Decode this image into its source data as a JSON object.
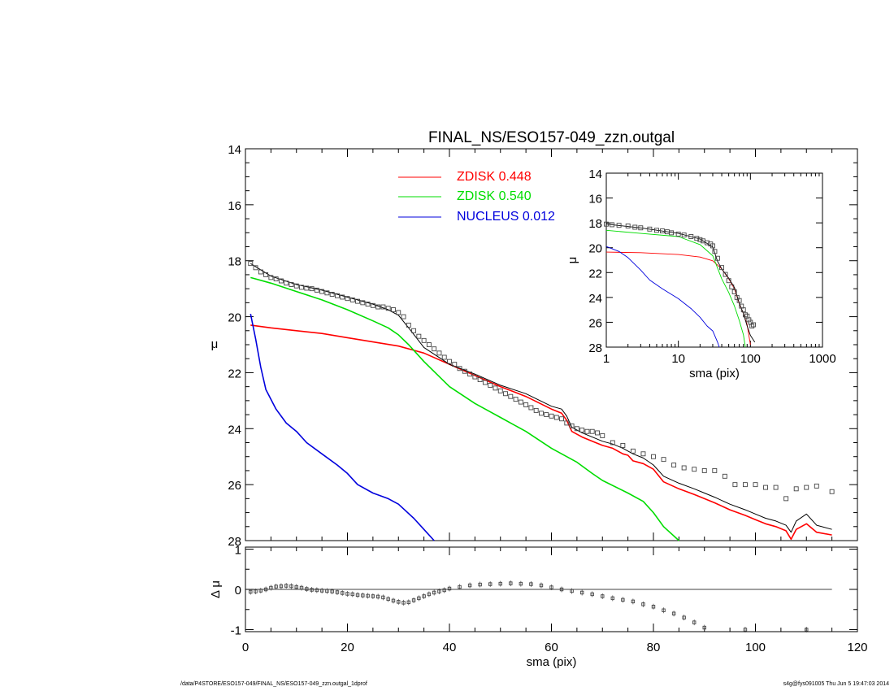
{
  "chart_data": [
    {
      "id": "main",
      "type": "line",
      "title": "FINAL_NS/ESO157-049_zzn.outgal",
      "xlabel": "",
      "ylabel": "μ",
      "xlim": [
        0,
        120
      ],
      "ylim": [
        28,
        14
      ],
      "yticks": [
        "14",
        "16",
        "18",
        "20",
        "22",
        "24",
        "26",
        "28"
      ],
      "series": [
        {
          "name": "ZDISK  0.448",
          "color": "#ff0000",
          "x": [
            1,
            5,
            10,
            15,
            20,
            25,
            30,
            35,
            40,
            45,
            50,
            55,
            60,
            62,
            63,
            64,
            66,
            68,
            70,
            72,
            74,
            75,
            76,
            78,
            80,
            82,
            85,
            88,
            90,
            92,
            95,
            98,
            100,
            102,
            104,
            106,
            107,
            108,
            110,
            112,
            115
          ],
          "y": [
            20.3,
            20.4,
            20.5,
            20.6,
            20.75,
            20.9,
            21.05,
            21.3,
            21.7,
            22.1,
            22.5,
            22.85,
            23.3,
            23.45,
            23.7,
            24.1,
            24.3,
            24.45,
            24.6,
            24.7,
            24.9,
            24.95,
            25.15,
            25.25,
            25.45,
            25.9,
            26.15,
            26.35,
            26.5,
            26.65,
            26.9,
            27.1,
            27.25,
            27.4,
            27.5,
            27.65,
            27.95,
            27.6,
            27.4,
            27.7,
            27.8
          ]
        },
        {
          "name": "ZDISK  0.540",
          "color": "#00dd00",
          "x": [
            1,
            5,
            10,
            15,
            20,
            25,
            28,
            30,
            32,
            35,
            40,
            45,
            50,
            55,
            60,
            63,
            65,
            68,
            70,
            75,
            78,
            80,
            82,
            85
          ],
          "y": [
            18.6,
            18.8,
            19.1,
            19.4,
            19.75,
            20.15,
            20.4,
            20.65,
            21.0,
            21.6,
            22.5,
            23.1,
            23.6,
            24.1,
            24.7,
            25.0,
            25.2,
            25.6,
            25.85,
            26.3,
            26.6,
            27.0,
            27.5,
            28.0
          ]
        },
        {
          "name": "NUCLEUS  0.012",
          "color": "#0000dd",
          "x": [
            1,
            2,
            3,
            4,
            6,
            8,
            10,
            12,
            15,
            18,
            20,
            22,
            25,
            28,
            30,
            33,
            35,
            37
          ],
          "y": [
            19.9,
            20.8,
            21.8,
            22.6,
            23.3,
            23.8,
            24.1,
            24.5,
            24.9,
            25.3,
            25.6,
            26.0,
            26.3,
            26.5,
            26.7,
            27.2,
            27.6,
            28.0
          ]
        },
        {
          "name": "",
          "color": "#000000",
          "x": [
            1,
            5,
            10,
            15,
            20,
            25,
            28,
            30,
            32,
            35,
            40,
            45,
            50,
            55,
            60,
            62,
            63,
            64,
            66,
            68,
            70,
            72,
            74,
            76,
            78,
            80,
            82,
            85,
            88,
            90,
            92,
            95,
            98,
            100,
            102,
            104,
            106,
            107,
            108,
            110,
            112,
            115
          ],
          "y": [
            18.1,
            18.55,
            18.85,
            19.05,
            19.3,
            19.55,
            19.75,
            19.95,
            20.4,
            21.1,
            21.7,
            22.05,
            22.45,
            22.75,
            23.2,
            23.3,
            23.55,
            23.95,
            24.15,
            24.3,
            24.45,
            24.55,
            24.7,
            24.9,
            25.05,
            25.3,
            25.7,
            25.95,
            26.15,
            26.3,
            26.45,
            26.7,
            26.9,
            27.05,
            27.2,
            27.3,
            27.45,
            27.7,
            27.3,
            27.05,
            27.45,
            27.6
          ]
        }
      ],
      "points": {
        "x": [
          1,
          2,
          3,
          4,
          5,
          6,
          7,
          8,
          9,
          10,
          11,
          12,
          13,
          14,
          15,
          16,
          17,
          18,
          19,
          20,
          21,
          22,
          23,
          24,
          25,
          26,
          27,
          28,
          29,
          30,
          31,
          32,
          33,
          34,
          35,
          36,
          37,
          38,
          39,
          40,
          41,
          42,
          43,
          44,
          45,
          46,
          47,
          48,
          49,
          50,
          51,
          52,
          53,
          54,
          55,
          56,
          57,
          58,
          59,
          60,
          61,
          62,
          63,
          64,
          65,
          66,
          67,
          68,
          69,
          70,
          72,
          74,
          76,
          78,
          80,
          82,
          84,
          86,
          88,
          90,
          92,
          94,
          96,
          98,
          100,
          102,
          104,
          106,
          108,
          110,
          112,
          115
        ],
        "y": [
          18.1,
          18.25,
          18.4,
          18.5,
          18.6,
          18.65,
          18.72,
          18.8,
          18.85,
          18.9,
          18.95,
          18.98,
          19.0,
          19.05,
          19.1,
          19.15,
          19.2,
          19.25,
          19.3,
          19.35,
          19.4,
          19.45,
          19.5,
          19.55,
          19.6,
          19.65,
          19.65,
          19.7,
          19.75,
          19.85,
          20.0,
          20.3,
          20.5,
          20.7,
          20.85,
          21.0,
          21.15,
          21.3,
          21.45,
          21.6,
          21.7,
          21.85,
          21.95,
          22.05,
          22.15,
          22.25,
          22.35,
          22.45,
          22.55,
          22.65,
          22.75,
          22.85,
          22.95,
          23.05,
          23.15,
          23.25,
          23.35,
          23.45,
          23.5,
          23.55,
          23.6,
          23.65,
          23.8,
          23.9,
          24.0,
          24.05,
          24.1,
          24.1,
          24.15,
          24.25,
          24.5,
          24.6,
          24.8,
          24.9,
          25.0,
          25.1,
          25.3,
          25.4,
          25.45,
          25.5,
          25.5,
          25.7,
          26.0,
          26.0,
          26.0,
          26.1,
          26.1,
          26.5,
          26.15,
          26.1,
          26.05,
          26.25
        ]
      },
      "legend_position": "top-center",
      "grid": false
    },
    {
      "id": "residual",
      "type": "scatter",
      "xlabel": "sma (pix)",
      "ylabel": "Δ μ",
      "xlim": [
        0,
        120
      ],
      "ylim": [
        -1,
        1
      ],
      "xticks": [
        "0",
        "20",
        "40",
        "60",
        "80",
        "100",
        "120"
      ],
      "yticks": [
        "1",
        "0",
        "-1"
      ],
      "zero_line": {
        "x": [
          1,
          115
        ],
        "y": 0
      },
      "points": {
        "x": [
          1,
          2,
          3,
          4,
          5,
          6,
          7,
          8,
          9,
          10,
          11,
          12,
          13,
          14,
          15,
          16,
          17,
          18,
          19,
          20,
          21,
          22,
          23,
          24,
          25,
          26,
          27,
          28,
          29,
          30,
          31,
          32,
          33,
          34,
          35,
          36,
          37,
          38,
          39,
          40,
          42,
          44,
          46,
          48,
          50,
          52,
          54,
          56,
          58,
          60,
          62,
          64,
          66,
          68,
          70,
          72,
          74,
          76,
          78,
          80,
          82,
          84,
          86,
          88,
          90,
          98,
          110
        ],
        "y": [
          -0.06,
          -0.05,
          -0.03,
          0.0,
          0.04,
          0.07,
          0.08,
          0.09,
          0.08,
          0.06,
          0.04,
          0.01,
          -0.01,
          -0.02,
          -0.03,
          -0.04,
          -0.05,
          -0.07,
          -0.09,
          -0.11,
          -0.12,
          -0.14,
          -0.15,
          -0.16,
          -0.17,
          -0.18,
          -0.2,
          -0.24,
          -0.28,
          -0.31,
          -0.33,
          -0.32,
          -0.27,
          -0.22,
          -0.17,
          -0.12,
          -0.08,
          -0.05,
          -0.02,
          0.02,
          0.06,
          0.1,
          0.12,
          0.13,
          0.14,
          0.15,
          0.14,
          0.13,
          0.1,
          0.05,
          0.0,
          -0.04,
          -0.08,
          -0.12,
          -0.17,
          -0.22,
          -0.26,
          -0.3,
          -0.37,
          -0.43,
          -0.52,
          -0.6,
          -0.7,
          -0.82,
          -0.95,
          -1.0,
          -1.0
        ]
      }
    },
    {
      "id": "inset",
      "type": "line",
      "xlabel": "sma (pix)",
      "ylabel": "μ",
      "xscale": "log",
      "xlim": [
        1,
        1000
      ],
      "ylim": [
        28,
        14
      ],
      "xticks": [
        "1",
        "10",
        "100",
        "1000"
      ],
      "yticks": [
        "14",
        "16",
        "18",
        "20",
        "22",
        "24",
        "26",
        "28"
      ],
      "series": [
        {
          "name": "",
          "color": "#ff0000",
          "x": [
            1,
            3,
            10,
            20,
            30,
            40,
            50,
            60,
            70,
            80,
            90,
            100
          ],
          "y": [
            20.35,
            20.4,
            20.55,
            20.75,
            21.05,
            21.7,
            22.5,
            23.3,
            24.5,
            25.3,
            26.2,
            27.8
          ]
        },
        {
          "name": "",
          "color": "#00dd00",
          "x": [
            1,
            3,
            10,
            20,
            30,
            40,
            50,
            60,
            70,
            80,
            85
          ],
          "y": [
            18.6,
            18.85,
            19.1,
            19.75,
            20.65,
            22.5,
            23.6,
            24.7,
            25.85,
            27.0,
            28.0
          ]
        },
        {
          "name": "",
          "color": "#0000dd",
          "x": [
            1,
            1.5,
            2,
            3,
            4,
            6,
            10,
            15,
            20,
            25,
            30,
            35,
            37
          ],
          "y": [
            19.9,
            20.3,
            20.8,
            21.8,
            22.6,
            23.3,
            24.1,
            24.9,
            25.6,
            26.3,
            26.7,
            27.6,
            28.0
          ]
        },
        {
          "name": "",
          "color": "#000000",
          "x": [
            1,
            3,
            10,
            20,
            30,
            35,
            40,
            50,
            60,
            70,
            80,
            90,
            100,
            115
          ],
          "y": [
            18.1,
            18.4,
            18.85,
            19.3,
            19.95,
            21.1,
            21.7,
            22.45,
            23.2,
            24.45,
            25.3,
            26.3,
            27.05,
            27.6
          ]
        }
      ],
      "points": {
        "x": [
          1,
          1.2,
          1.5,
          2,
          2.5,
          3,
          4,
          5,
          6,
          7,
          8,
          10,
          12,
          15,
          18,
          20,
          22,
          25,
          28,
          30,
          32,
          35,
          40,
          45,
          50,
          55,
          60,
          65,
          70,
          75,
          80,
          85,
          90,
          95,
          100,
          105,
          110
        ],
        "y": [
          18.1,
          18.15,
          18.2,
          18.25,
          18.35,
          18.4,
          18.5,
          18.6,
          18.65,
          18.72,
          18.8,
          18.9,
          18.98,
          19.1,
          19.25,
          19.35,
          19.45,
          19.6,
          19.7,
          19.85,
          20.3,
          20.85,
          21.6,
          22.15,
          22.65,
          23.15,
          23.55,
          24.0,
          24.25,
          24.7,
          25.0,
          25.4,
          25.5,
          25.8,
          26.0,
          26.3,
          26.2
        ]
      }
    }
  ],
  "footer": {
    "left": "/data/P4STORE/ESO157-049/FINAL_NS/ESO157-049_zzn.outgal_1dprof",
    "right": "s4g@fys091005  Thu Jun  5 19:47:03 2014"
  }
}
